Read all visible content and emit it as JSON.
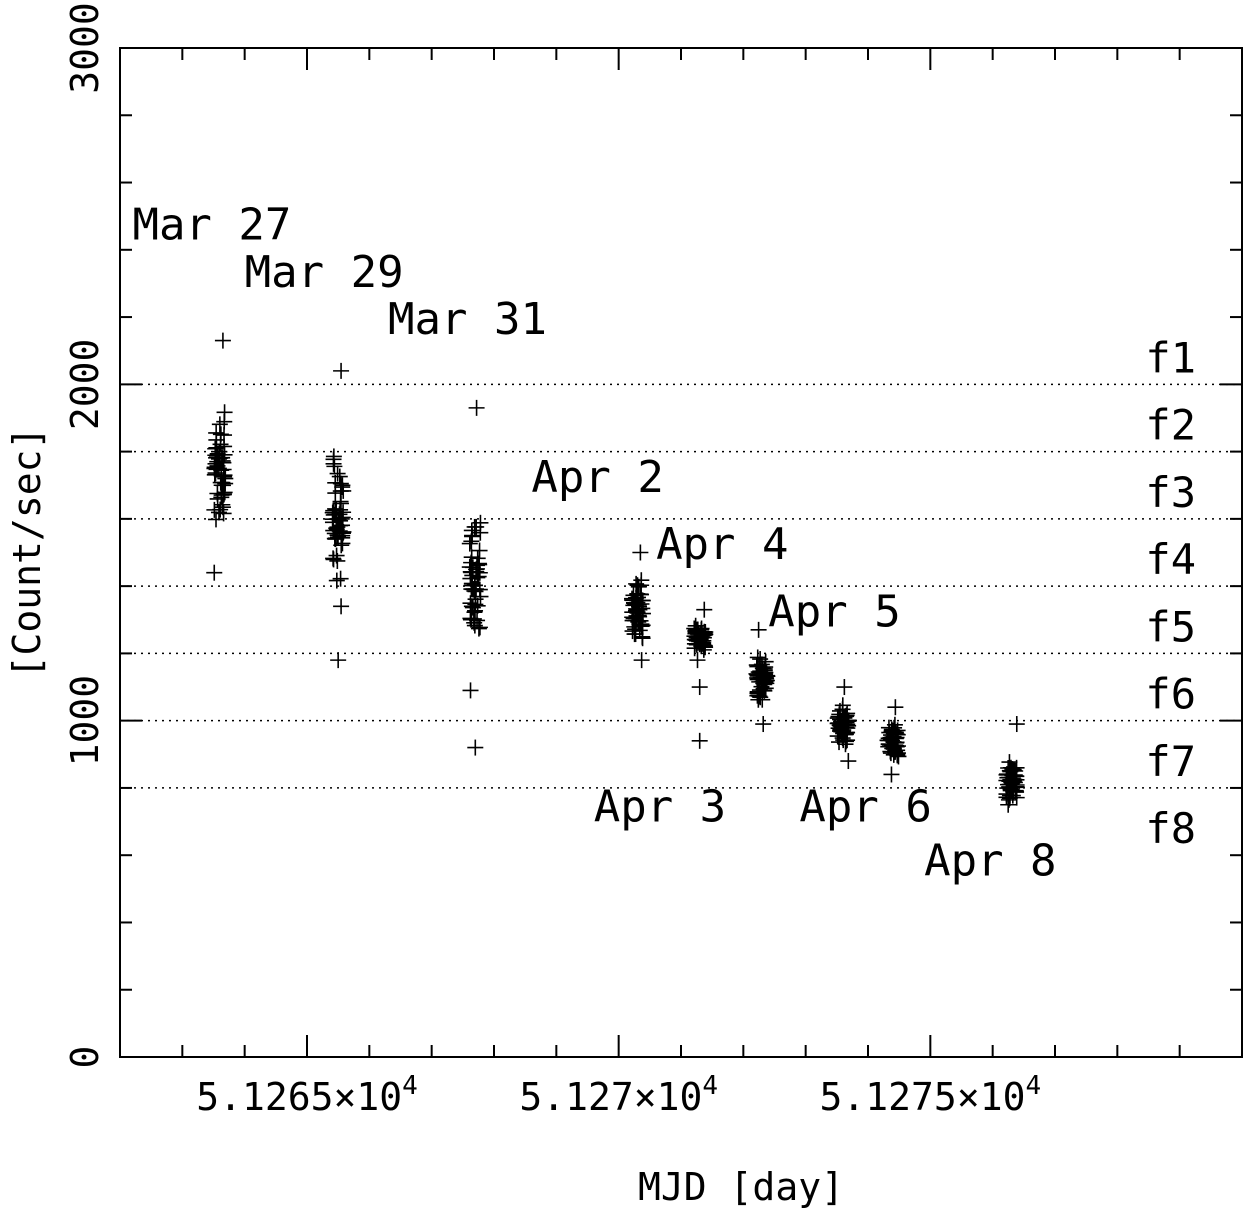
{
  "chart_data": {
    "type": "scatter",
    "marker": "plus",
    "xlabel": "MJD [day]",
    "ylabel": "[Count/sec]",
    "xlim": [
      51262.0,
      51280.0
    ],
    "ylim": [
      0,
      3000
    ],
    "x_ticks": [
      {
        "value": 51265,
        "label": "5.1265×10",
        "exp": "4"
      },
      {
        "value": 51270,
        "label": "5.127×10",
        "exp": "4"
      },
      {
        "value": 51275,
        "label": "5.1275×10",
        "exp": "4"
      }
    ],
    "y_ticks": [
      {
        "value": 0,
        "label": "0"
      },
      {
        "value": 1000,
        "label": "1000"
      },
      {
        "value": 2000,
        "label": "2000"
      },
      {
        "value": 3000,
        "label": "3000"
      }
    ],
    "x_minor_step": 1,
    "y_minor_step": 200,
    "grid": false,
    "reference_lines": [
      {
        "y": 2000,
        "label": "f1"
      },
      {
        "y": 1800,
        "label": "f2"
      },
      {
        "y": 1600,
        "label": "f3"
      },
      {
        "y": 1400,
        "label": "f4"
      },
      {
        "y": 1200,
        "label": "f5"
      },
      {
        "y": 1000,
        "label": "f6"
      },
      {
        "y": 800,
        "label": "f7"
      },
      {
        "y": 0,
        "label": "f8"
      }
    ],
    "groups": [
      {
        "label": "Mar 27",
        "x_center": 51263.6,
        "y_center": 1760,
        "y_range": [
          1440,
          2130
        ],
        "outliers": [],
        "label_pos": [
          51262.2,
          2430
        ]
      },
      {
        "label": "Mar 29",
        "x_center": 51265.5,
        "y_center": 1590,
        "y_range": [
          1340,
          2040
        ],
        "outliers": [
          1180
        ],
        "label_pos": [
          51264.0,
          2290
        ]
      },
      {
        "label": "Mar 31",
        "x_center": 51267.7,
        "y_center": 1420,
        "y_range": [
          1090,
          1930
        ],
        "outliers": [
          920
        ],
        "label_pos": [
          51266.3,
          2150
        ]
      },
      {
        "label": "Apr 2",
        "x_center": 51270.3,
        "y_center": 1320,
        "y_range": [
          1180,
          1500
        ],
        "outliers": [],
        "label_pos": [
          51268.6,
          1680
        ]
      },
      {
        "label": "Apr 3",
        "x_center": 51271.3,
        "y_center": 1250,
        "y_range": [
          1180,
          1330
        ],
        "outliers": [
          1100,
          940
        ],
        "label_pos": [
          51269.6,
          700
        ]
      },
      {
        "label": "Apr 4",
        "x_center": 51272.3,
        "y_center": 1120,
        "y_range": [
          990,
          1270
        ],
        "outliers": [],
        "label_pos": [
          51270.6,
          1480
        ]
      },
      {
        "label": "Apr 5",
        "x_center": 51273.6,
        "y_center": 990,
        "y_range": [
          880,
          1100
        ],
        "outliers": [],
        "label_pos": [
          51272.4,
          1280
        ]
      },
      {
        "label": "Apr 6",
        "x_center": 51274.4,
        "y_center": 940,
        "y_range": [
          840,
          1040
        ],
        "outliers": [],
        "label_pos": [
          51272.9,
          700
        ]
      },
      {
        "label": "Apr 8",
        "x_center": 51276.3,
        "y_center": 820,
        "y_range": [
          750,
          990
        ],
        "outliers": [],
        "label_pos": [
          51274.9,
          540
        ]
      }
    ]
  }
}
